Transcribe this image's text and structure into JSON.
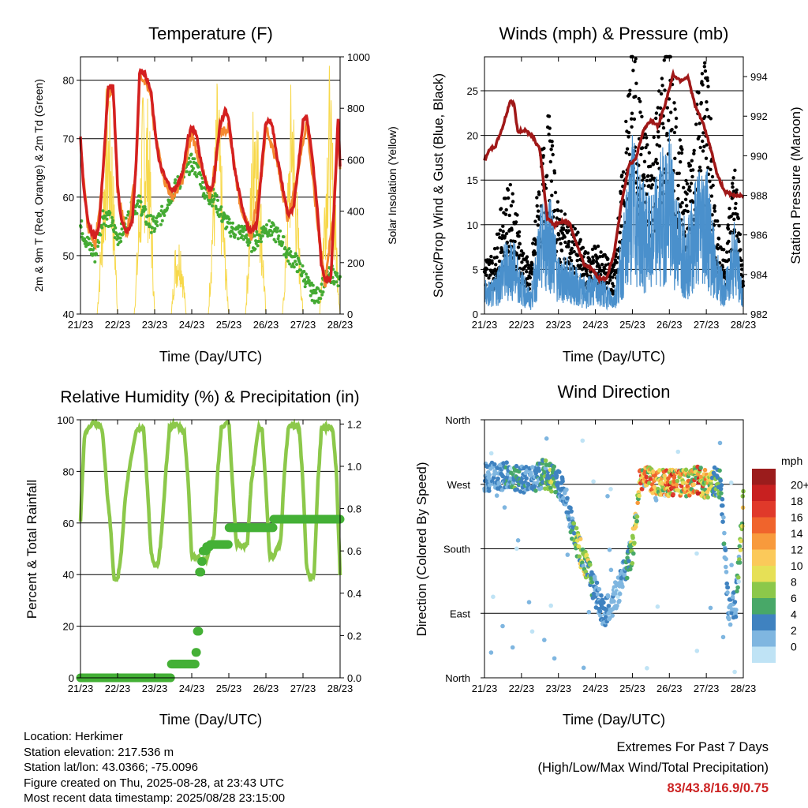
{
  "x_ticks": [
    "21/23",
    "22/23",
    "23/23",
    "24/23",
    "25/23",
    "26/23",
    "27/23",
    "28/23"
  ],
  "temperature": {
    "title": "Temperature (F)",
    "xlabel": "Time (Day/UTC)",
    "ylabel_left": "2m & 9m T (Red, Orange) & 2m Td (Green)",
    "ylabel_right": "Solar Insolation (Yellow)",
    "yticks_left": [
      "40",
      "50",
      "60",
      "70",
      "80"
    ],
    "yticks_right": [
      "0",
      "200",
      "400",
      "600",
      "800",
      "1000"
    ]
  },
  "winds": {
    "title": "Winds (mph) & Pressure (mb)",
    "xlabel": "Time (Day/UTC)",
    "ylabel_left": "Sonic/Prop Wind & Gust (Blue, Black)",
    "ylabel_right": "Station Pressure (Maroon)",
    "yticks_left": [
      "0",
      "5",
      "10",
      "15",
      "20",
      "25"
    ],
    "yticks_right": [
      "982",
      "984",
      "986",
      "988",
      "990",
      "992",
      "994"
    ]
  },
  "humidity": {
    "title": "Relative Humidity (%) & Precipitation (in)",
    "xlabel": "Time (Day/UTC)",
    "ylabel_left": "Percent & Total Rainfall",
    "yticks_left": [
      "0",
      "20",
      "40",
      "60",
      "80",
      "100"
    ],
    "yticks_right": [
      "0.0",
      "0.2",
      "0.4",
      "0.6",
      "0.8",
      "1.0",
      "1.2"
    ]
  },
  "direction": {
    "title": "Wind Direction",
    "xlabel": "Time (Day/UTC)",
    "ylabel_left": "Direction (Colored By Speed)",
    "yticks_left": [
      "North",
      "East",
      "South",
      "West",
      "North"
    ],
    "legend_title": "mph",
    "legend_labels": [
      "20+",
      "18",
      "16",
      "14",
      "12",
      "10",
      "8",
      "6",
      "4",
      "2",
      "0"
    ],
    "legend_colors": [
      "#9b1c1c",
      "#c82020",
      "#e0392a",
      "#f0642c",
      "#f89a3c",
      "#fbc95a",
      "#e6e056",
      "#8cc84a",
      "#48a868",
      "#3f82c0",
      "#7fb6e0",
      "#bfe3f5"
    ]
  },
  "footer": {
    "location": "Location: Herkimer",
    "elevation": "Station elevation: 217.536 m",
    "latlon": "Station lat/lon: 43.0366; -75.0096",
    "created": "Figure created on Thu, 2025-08-28, at 23:43 UTC",
    "timestamp": "Most recent data timestamp: 2025/08/28 23:15:00"
  },
  "extremes": {
    "line1": "Extremes For Past 7 Days",
    "line2": "(High/Low/Max Wind/Total Precipitation)",
    "values": "83/43.8/16.9/0.75"
  },
  "chart_data": [
    {
      "type": "line",
      "title": "Temperature (F)",
      "xlabel": "Time (Day/UTC)",
      "ylabel": "2m & 9m T (Red, Orange) & 2m Td (Green)",
      "y2label": "Solar Insolation (Yellow)",
      "ylim": [
        40,
        84
      ],
      "y2lim": [
        0,
        1000
      ],
      "x_days": [
        0,
        7
      ],
      "series": [
        {
          "name": "2m T",
          "color": "#d42020",
          "x": [
            0,
            0.08,
            0.2,
            0.3,
            0.4,
            0.5,
            0.6,
            0.75,
            0.88,
            1.0,
            1.1,
            1.25,
            1.4,
            1.5,
            1.6,
            1.75,
            1.9,
            2.0,
            2.12,
            2.3,
            2.5,
            2.6,
            2.75,
            2.9,
            3.0,
            3.12,
            3.25,
            3.4,
            3.5,
            3.6,
            3.75,
            3.9,
            4.0,
            4.15,
            4.3,
            4.5,
            4.6,
            4.75,
            4.9,
            5.0,
            5.15,
            5.3,
            5.5,
            5.6,
            5.75,
            5.9,
            6.0,
            6.1,
            6.25,
            6.4,
            6.5,
            6.6,
            6.75,
            6.85,
            6.95,
            7.0
          ],
          "y": [
            70,
            62,
            56,
            54,
            53,
            55,
            64,
            79,
            79,
            62,
            56,
            54,
            56,
            66,
            82,
            81,
            78,
            72,
            66,
            63,
            61,
            62,
            64,
            70,
            72,
            71,
            66,
            62,
            61,
            63,
            72,
            75,
            73,
            65,
            60,
            55,
            54,
            55,
            66,
            73,
            73,
            67,
            60,
            57,
            58,
            67,
            73,
            74,
            67,
            57,
            48,
            46,
            46,
            60,
            74,
            65
          ]
        },
        {
          "name": "9m T",
          "color": "#f48a30",
          "x": [
            0,
            0.2,
            0.4,
            0.6,
            0.75,
            0.88,
            1.0,
            1.25,
            1.5,
            1.6,
            1.75,
            1.9,
            2.0,
            2.3,
            2.5,
            2.75,
            3.0,
            3.25,
            3.5,
            3.75,
            4.0,
            4.3,
            4.6,
            4.9,
            5.0,
            5.3,
            5.6,
            5.9,
            6.1,
            6.4,
            6.6,
            6.85,
            6.95,
            7.0
          ],
          "y": [
            69,
            55,
            52,
            63,
            78,
            78,
            61,
            53,
            65,
            81,
            80,
            77,
            71,
            62,
            60,
            63,
            71,
            65,
            60,
            71,
            72,
            59,
            53,
            65,
            72,
            66,
            56,
            66,
            73,
            55,
            45,
            59,
            73,
            64
          ]
        },
        {
          "name": "2m Td",
          "color": "#44aa33",
          "x": [
            0,
            0.2,
            0.4,
            0.6,
            0.8,
            1.0,
            1.2,
            1.4,
            1.6,
            1.8,
            2.0,
            2.2,
            2.4,
            2.6,
            2.8,
            3.0,
            3.2,
            3.4,
            3.6,
            3.8,
            4.0,
            4.2,
            4.4,
            4.6,
            4.8,
            5.0,
            5.2,
            5.4,
            5.6,
            5.8,
            6.0,
            6.2,
            6.4,
            6.6,
            6.8,
            7.0
          ],
          "y": [
            55,
            52,
            50,
            57,
            56,
            53,
            55,
            58,
            59,
            56,
            55,
            57,
            60,
            62,
            64,
            66,
            64,
            60,
            60,
            57,
            55,
            54,
            54,
            52,
            53,
            55,
            54,
            53,
            50,
            49,
            47,
            44,
            43,
            46,
            47,
            45
          ]
        }
      ],
      "secondary_series": [
        {
          "name": "Solar Insolation",
          "color": "#f7d84a",
          "x": [
            0,
            0.15,
            0.3,
            0.45,
            0.55,
            0.7,
            0.85,
            1.0,
            1.15,
            1.3,
            1.45,
            1.55,
            1.7,
            1.85,
            2.0,
            2.15,
            2.3,
            2.45,
            2.55,
            2.7,
            2.85,
            3.0,
            3.15,
            3.3,
            3.45,
            3.55,
            3.7,
            3.85,
            4.0,
            4.15,
            4.3,
            4.45,
            4.55,
            4.7,
            4.85,
            5.0,
            5.15,
            5.3,
            5.45,
            5.55,
            5.7,
            5.85,
            6.0,
            6.15,
            6.3,
            6.45,
            6.55,
            6.7,
            6.85,
            7.0
          ],
          "y": [
            0,
            0,
            0,
            0,
            300,
            850,
            700,
            0,
            0,
            0,
            0,
            320,
            880,
            750,
            0,
            0,
            0,
            0,
            250,
            300,
            0,
            0,
            0,
            0,
            0,
            400,
            900,
            400,
            0,
            0,
            0,
            0,
            350,
            980,
            500,
            0,
            0,
            0,
            0,
            320,
            960,
            420,
            0,
            0,
            0,
            0,
            380,
            930,
            500,
            0
          ]
        }
      ]
    },
    {
      "type": "line",
      "title": "Winds (mph) & Pressure (mb)",
      "xlabel": "Time (Day/UTC)",
      "ylabel": "Sonic/Prop Wind & Gust (Blue, Black)",
      "y2label": "Station Pressure (Maroon)",
      "ylim": [
        0,
        28.8
      ],
      "y2lim": [
        982,
        995
      ],
      "x_days": [
        0,
        7
      ],
      "series": [
        {
          "name": "Sonic/Prop Wind",
          "color": "#4a90cc",
          "x": [
            0,
            0.25,
            0.5,
            0.75,
            1.0,
            1.25,
            1.5,
            1.75,
            2.0,
            2.25,
            2.5,
            2.75,
            3.0,
            3.25,
            3.5,
            3.75,
            4.0,
            4.25,
            4.5,
            4.75,
            5.0,
            5.25,
            5.5,
            5.75,
            6.0,
            6.25,
            6.5,
            6.75,
            7.0
          ],
          "y": [
            3,
            3,
            6,
            7,
            4,
            2,
            9,
            12,
            5,
            5,
            4,
            3,
            4,
            3,
            2,
            8,
            16,
            12,
            10,
            14,
            16,
            10,
            8,
            13,
            14,
            6,
            3,
            9,
            2
          ]
        },
        {
          "name": "Gust",
          "color": "#000000",
          "x": [
            0,
            0.25,
            0.5,
            0.75,
            1.0,
            1.25,
            1.5,
            1.75,
            2.0,
            2.25,
            2.5,
            2.75,
            3.0,
            3.25,
            3.5,
            3.75,
            4.0,
            4.25,
            4.5,
            4.75,
            5.0,
            5.25,
            5.5,
            5.75,
            6.0,
            6.25,
            6.5,
            6.75,
            7.0
          ],
          "y": [
            5,
            5,
            10,
            11,
            6,
            4,
            13,
            17,
            9,
            8,
            7,
            5,
            6,
            5,
            4,
            13,
            24,
            17,
            14,
            20,
            25,
            15,
            12,
            19,
            23,
            9,
            5,
            14,
            3
          ]
        }
      ],
      "secondary_series": [
        {
          "name": "Station Pressure",
          "color": "#a01818",
          "x": [
            0,
            0.1,
            0.3,
            0.5,
            0.7,
            0.8,
            0.9,
            1.1,
            1.3,
            1.5,
            1.7,
            1.9,
            2.1,
            2.3,
            2.5,
            2.7,
            2.9,
            3.1,
            3.3,
            3.5,
            3.7,
            3.9,
            4.1,
            4.3,
            4.5,
            4.7,
            4.9,
            5.1,
            5.3,
            5.5,
            5.7,
            5.9,
            6.1,
            6.3,
            6.5,
            6.7,
            6.9,
            7.0
          ],
          "y": [
            989.8,
            990.2,
            990.5,
            991.5,
            992.8,
            992.6,
            991.2,
            991.3,
            991.0,
            990.3,
            986.8,
            986.5,
            986.7,
            986.6,
            985.5,
            984.5,
            984.3,
            983.8,
            983.8,
            985.0,
            987.5,
            989.5,
            989.9,
            991.3,
            991.8,
            991.5,
            992.7,
            994.1,
            993.8,
            994.0,
            992.5,
            991.7,
            990.5,
            989.0,
            988.2,
            988.0,
            988.0,
            988.0
          ]
        }
      ]
    },
    {
      "type": "line",
      "title": "Relative Humidity (%) & Precipitation (in)",
      "xlabel": "Time (Day/UTC)",
      "ylabel": "Percent & Total Rainfall",
      "ylim": [
        0,
        100
      ],
      "y2lim": [
        0,
        1.22
      ],
      "x_days": [
        0,
        7
      ],
      "series": [
        {
          "name": "Relative Humidity",
          "color": "#8cc84a",
          "x": [
            0,
            0.1,
            0.2,
            0.35,
            0.5,
            0.6,
            0.7,
            0.8,
            0.9,
            1.0,
            1.1,
            1.2,
            1.3,
            1.5,
            1.7,
            1.8,
            1.9,
            2.0,
            2.1,
            2.2,
            2.3,
            2.4,
            2.6,
            2.8,
            2.9,
            3.0,
            3.1,
            3.25,
            3.4,
            3.6,
            3.7,
            3.8,
            3.9,
            4.0,
            4.1,
            4.2,
            4.35,
            4.5,
            4.6,
            4.8,
            4.9,
            5.0,
            5.1,
            5.2,
            5.3,
            5.4,
            5.5,
            5.6,
            5.7,
            5.9,
            6.0,
            6.1,
            6.2,
            6.3,
            6.4,
            6.5,
            6.6,
            6.8,
            6.9,
            7.0
          ],
          "y": [
            60,
            93,
            97,
            99,
            98,
            95,
            75,
            60,
            39,
            38,
            48,
            68,
            80,
            96,
            97,
            75,
            49,
            43,
            44,
            58,
            80,
            97,
            98,
            95,
            77,
            47,
            47,
            46,
            46,
            55,
            80,
            97,
            98,
            99,
            75,
            52,
            51,
            52,
            75,
            97,
            96,
            74,
            47,
            47,
            50,
            53,
            80,
            97,
            98,
            97,
            75,
            42,
            38,
            40,
            75,
            97,
            97,
            97,
            80,
            40
          ]
        }
      ],
      "secondary_series": [
        {
          "name": "Total Rainfall",
          "color": "#44b036",
          "x": [
            0,
            1.0,
            2.0,
            2.3,
            2.45,
            3.0,
            3.1,
            3.15,
            3.2,
            3.25,
            3.3,
            3.4,
            3.5,
            3.8,
            4.0,
            4.5,
            5.0,
            5.2,
            5.4,
            6.0,
            7.0
          ],
          "y": [
            0,
            0,
            0,
            0,
            0.065,
            0.065,
            0.12,
            0.22,
            0.5,
            0.55,
            0.6,
            0.62,
            0.63,
            0.63,
            0.71,
            0.71,
            0.71,
            0.75,
            0.75,
            0.75,
            0.75
          ]
        }
      ]
    },
    {
      "type": "scatter",
      "title": "Wind Direction",
      "xlabel": "Time (Day/UTC)",
      "ylabel": "Direction (Colored By Speed)",
      "ylim": [
        "North",
        "North"
      ],
      "y_categories": [
        "North",
        "East",
        "South",
        "West",
        "North"
      ],
      "color_scale": "mph",
      "x": [
        0.2,
        0.4,
        0.6,
        0.8,
        1.0,
        1.2,
        1.4,
        1.6,
        1.8,
        2.0,
        2.2,
        2.4,
        2.6,
        2.8,
        3.0,
        3.2,
        3.4,
        3.6,
        3.8,
        4.0,
        4.2,
        4.4,
        4.6,
        4.8,
        5.0,
        5.2,
        5.4,
        5.6,
        5.8,
        6.0,
        6.2,
        6.4,
        6.6,
        6.8,
        7.0
      ],
      "direction_deg": [
        280,
        280,
        285,
        280,
        275,
        280,
        280,
        285,
        280,
        270,
        255,
        200,
        175,
        150,
        120,
        90,
        100,
        120,
        150,
        180,
        270,
        275,
        270,
        275,
        270,
        275,
        270,
        275,
        275,
        270,
        275,
        270,
        90,
        105,
        245
      ],
      "speed": [
        3,
        4,
        4,
        6,
        5,
        3,
        4,
        6,
        8,
        4,
        4,
        6,
        10,
        9,
        3,
        4,
        3,
        2,
        4,
        8,
        14,
        16,
        14,
        12,
        16,
        15,
        14,
        12,
        16,
        12,
        8,
        5,
        3,
        4,
        10
      ]
    }
  ]
}
